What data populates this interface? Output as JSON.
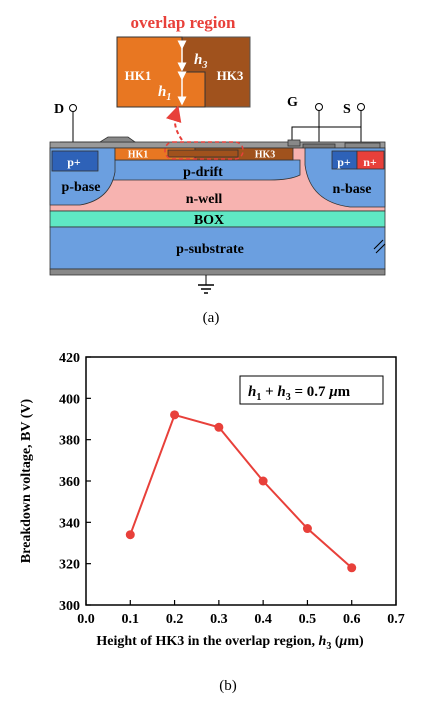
{
  "figure_a": {
    "inset_title": "overlap region",
    "inset_labels": {
      "left": "HK1",
      "right": "HK3",
      "h3_base": "h",
      "h3_sub": "3",
      "h1_base": "h",
      "h1_sub": "1"
    },
    "terminals": {
      "drain": "D",
      "gate": "G",
      "source": "S"
    },
    "regions": {
      "p_plus_left": "p+",
      "p_base_left": "p-base",
      "hk1": "HK1",
      "hk3": "HK3",
      "p_drift": "p-drift",
      "n_well": "n-well",
      "p_plus_right": "p+",
      "n_plus_right": "n+",
      "n_base_right": "n-base",
      "box": "BOX",
      "p_substrate": "p-substrate"
    },
    "caption": "(a)",
    "colors": {
      "orange": "#e87722",
      "brown": "#a0521d",
      "blue": "#6b9fe0",
      "pink": "#f7b3b0",
      "cyan": "#5fe8c4",
      "red": "#e8403a",
      "gray": "#888888",
      "darkblue": "#2e62b8"
    }
  },
  "figure_b": {
    "caption": "(b)",
    "annotation": {
      "part1": "h",
      "sub1": "1",
      "plus": " + ",
      "part2": "h",
      "sub2": "3",
      "rest": " = 0.7 ",
      "mu": "μ",
      "unit": "m"
    },
    "chart_data": {
      "type": "line",
      "x": [
        0.1,
        0.2,
        0.3,
        0.4,
        0.5,
        0.6
      ],
      "y": [
        334,
        392,
        386,
        360,
        337,
        318
      ],
      "xlim": [
        0.0,
        0.7
      ],
      "ylim": [
        300,
        420
      ],
      "xticks": [
        "0.0",
        "0.1",
        "0.2",
        "0.3",
        "0.4",
        "0.5",
        "0.6",
        "0.7"
      ],
      "yticks": [
        "300",
        "320",
        "340",
        "360",
        "380",
        "400",
        "420"
      ],
      "xlabel_parts": {
        "text": "Height of HK3 in the overlap region, ",
        "var": "h",
        "sub": "3",
        "unit": " (",
        "mu": "μ",
        "unit2": "m)"
      },
      "ylabel": "Breakdown voltage, BV (V)",
      "color": "#e8403a",
      "grid": false
    }
  }
}
